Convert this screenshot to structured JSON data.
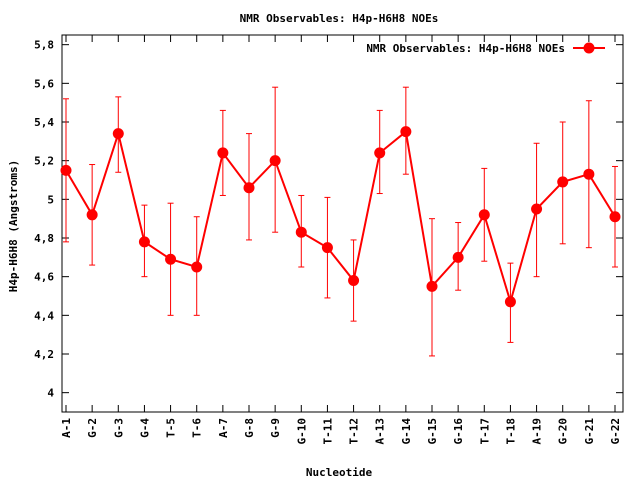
{
  "chart_data": {
    "type": "line",
    "title": "NMR Observables: H4p-H6H8 NOEs",
    "xlabel": "Nucleotide",
    "ylabel": "H4p-H6H8 (Angstroms)",
    "ylim": [
      3.9,
      5.85
    ],
    "yticks": [
      "4",
      "4,2",
      "4,4",
      "4,6",
      "4,8",
      "5",
      "5,2",
      "5,4",
      "5,6",
      "5,8"
    ],
    "ytick_values": [
      4.0,
      4.2,
      4.4,
      4.6,
      4.8,
      5.0,
      5.2,
      5.4,
      5.6,
      5.8
    ],
    "grid": false,
    "legend_position": "top-right",
    "categories": [
      "A-1",
      "G-2",
      "G-3",
      "G-4",
      "T-5",
      "T-6",
      "A-7",
      "G-8",
      "G-9",
      "G-10",
      "T-11",
      "T-12",
      "A-13",
      "G-14",
      "G-15",
      "G-16",
      "T-17",
      "T-18",
      "A-19",
      "G-20",
      "G-21",
      "G-22"
    ],
    "series": [
      {
        "name": "NMR Observables: H4p-H6H8 NOEs",
        "color": "#ff0000",
        "values": [
          5.15,
          4.92,
          5.34,
          4.78,
          4.69,
          4.65,
          5.24,
          5.06,
          5.2,
          4.83,
          4.75,
          4.58,
          5.24,
          5.35,
          4.55,
          4.7,
          4.92,
          4.47,
          4.95,
          5.09,
          5.13,
          4.91
        ],
        "err_low": [
          4.78,
          4.66,
          5.14,
          4.6,
          4.4,
          4.4,
          5.02,
          4.79,
          4.83,
          4.65,
          4.49,
          4.37,
          5.03,
          5.13,
          4.19,
          4.53,
          4.68,
          4.26,
          4.6,
          4.77,
          4.75,
          4.65
        ],
        "err_high": [
          5.52,
          5.18,
          5.53,
          4.97,
          4.98,
          4.91,
          5.46,
          5.34,
          5.58,
          5.02,
          5.01,
          4.79,
          5.46,
          5.58,
          4.9,
          4.88,
          5.16,
          4.67,
          5.29,
          5.4,
          5.51,
          5.17
        ]
      }
    ]
  }
}
